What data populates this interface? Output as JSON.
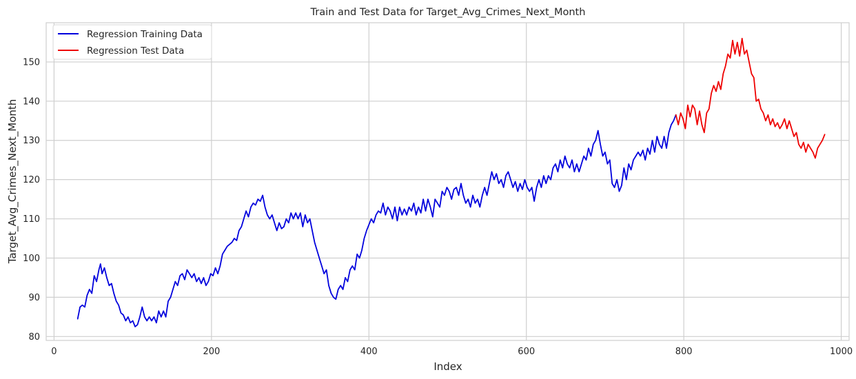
{
  "chart_data": {
    "type": "line",
    "title": "Train and Test Data for Target_Avg_Crimes_Next_Month",
    "xlabel": "Index",
    "ylabel": "Target_Avg_Crimes_Next_Month",
    "xlim": [
      -10,
      1010
    ],
    "ylim": [
      79,
      160
    ],
    "xticks": [
      0,
      200,
      400,
      600,
      800,
      1000
    ],
    "xtick_labels": [
      "0",
      "200",
      "400",
      "600",
      "800",
      "1000"
    ],
    "yticks": [
      80,
      90,
      100,
      110,
      120,
      130,
      140,
      150
    ],
    "ytick_labels": [
      "80",
      "90",
      "100",
      "110",
      "120",
      "130",
      "140",
      "150"
    ],
    "grid": true,
    "legend_position": "top-left",
    "series": [
      {
        "name": "Regression Training Data",
        "color": "#0000dd",
        "points": [
          [
            30,
            84.5
          ],
          [
            33,
            87.5
          ],
          [
            36,
            88
          ],
          [
            39,
            87.5
          ],
          [
            42,
            90.5
          ],
          [
            45,
            92
          ],
          [
            48,
            91
          ],
          [
            51,
            95.5
          ],
          [
            54,
            94
          ],
          [
            57,
            97
          ],
          [
            59,
            98.5
          ],
          [
            61,
            96
          ],
          [
            64,
            97.5
          ],
          [
            67,
            95
          ],
          [
            70,
            93
          ],
          [
            73,
            93.5
          ],
          [
            76,
            91
          ],
          [
            79,
            89
          ],
          [
            82,
            88
          ],
          [
            85,
            86
          ],
          [
            88,
            85.5
          ],
          [
            91,
            84
          ],
          [
            94,
            85
          ],
          [
            97,
            83.5
          ],
          [
            100,
            84
          ],
          [
            103,
            82.5
          ],
          [
            106,
            83
          ],
          [
            109,
            85
          ],
          [
            112,
            87.5
          ],
          [
            115,
            85
          ],
          [
            118,
            84
          ],
          [
            121,
            85
          ],
          [
            124,
            84
          ],
          [
            127,
            85
          ],
          [
            130,
            83.5
          ],
          [
            133,
            86.5
          ],
          [
            136,
            85
          ],
          [
            139,
            86.5
          ],
          [
            142,
            85
          ],
          [
            145,
            89
          ],
          [
            148,
            90
          ],
          [
            151,
            92
          ],
          [
            154,
            94
          ],
          [
            157,
            93
          ],
          [
            160,
            95.5
          ],
          [
            163,
            96
          ],
          [
            166,
            94.5
          ],
          [
            169,
            97
          ],
          [
            172,
            96
          ],
          [
            175,
            95
          ],
          [
            178,
            96
          ],
          [
            181,
            94
          ],
          [
            184,
            95
          ],
          [
            187,
            93.5
          ],
          [
            190,
            95
          ],
          [
            193,
            93
          ],
          [
            196,
            94
          ],
          [
            199,
            96
          ],
          [
            202,
            95.5
          ],
          [
            205,
            97.5
          ],
          [
            208,
            96
          ],
          [
            211,
            98
          ],
          [
            214,
            101
          ],
          [
            217,
            102
          ],
          [
            220,
            103
          ],
          [
            223,
            103.5
          ],
          [
            226,
            104
          ],
          [
            229,
            105
          ],
          [
            232,
            104.5
          ],
          [
            235,
            107
          ],
          [
            238,
            108
          ],
          [
            241,
            110
          ],
          [
            244,
            112
          ],
          [
            247,
            110.5
          ],
          [
            250,
            113
          ],
          [
            253,
            114
          ],
          [
            256,
            113.5
          ],
          [
            259,
            115
          ],
          [
            262,
            114.5
          ],
          [
            265,
            116
          ],
          [
            268,
            113
          ],
          [
            271,
            111
          ],
          [
            274,
            110
          ],
          [
            277,
            111
          ],
          [
            280,
            109
          ],
          [
            283,
            107
          ],
          [
            286,
            109
          ],
          [
            289,
            107.5
          ],
          [
            292,
            108
          ],
          [
            295,
            110
          ],
          [
            298,
            109
          ],
          [
            301,
            111.5
          ],
          [
            304,
            110
          ],
          [
            307,
            111.5
          ],
          [
            310,
            110
          ],
          [
            313,
            111.5
          ],
          [
            316,
            108
          ],
          [
            319,
            111
          ],
          [
            322,
            109
          ],
          [
            325,
            110
          ],
          [
            328,
            107
          ],
          [
            331,
            104
          ],
          [
            334,
            102
          ],
          [
            337,
            100
          ],
          [
            340,
            98
          ],
          [
            343,
            96
          ],
          [
            346,
            97
          ],
          [
            349,
            93
          ],
          [
            352,
            91
          ],
          [
            355,
            90
          ],
          [
            358,
            89.5
          ],
          [
            361,
            92
          ],
          [
            364,
            93
          ],
          [
            367,
            92
          ],
          [
            370,
            95
          ],
          [
            373,
            94
          ],
          [
            376,
            97
          ],
          [
            379,
            98
          ],
          [
            382,
            97
          ],
          [
            385,
            101
          ],
          [
            388,
            100
          ],
          [
            391,
            102
          ],
          [
            394,
            105
          ],
          [
            397,
            107
          ],
          [
            400,
            108.5
          ],
          [
            403,
            110
          ],
          [
            406,
            109
          ],
          [
            409,
            111
          ],
          [
            412,
            112
          ],
          [
            415,
            111.5
          ],
          [
            418,
            114
          ],
          [
            421,
            111
          ],
          [
            424,
            113
          ],
          [
            427,
            112
          ],
          [
            430,
            110
          ],
          [
            433,
            113
          ],
          [
            436,
            109.5
          ],
          [
            439,
            113
          ],
          [
            442,
            111
          ],
          [
            445,
            112.5
          ],
          [
            448,
            111
          ],
          [
            451,
            113
          ],
          [
            454,
            112
          ],
          [
            457,
            114
          ],
          [
            460,
            111
          ],
          [
            463,
            113
          ],
          [
            466,
            111.5
          ],
          [
            469,
            115
          ],
          [
            472,
            112
          ],
          [
            475,
            115
          ],
          [
            478,
            113
          ],
          [
            481,
            110.5
          ],
          [
            484,
            115
          ],
          [
            487,
            114
          ],
          [
            490,
            113
          ],
          [
            493,
            117
          ],
          [
            496,
            116
          ],
          [
            499,
            118
          ],
          [
            502,
            117
          ],
          [
            505,
            115
          ],
          [
            508,
            117.5
          ],
          [
            511,
            118
          ],
          [
            514,
            116
          ],
          [
            517,
            119
          ],
          [
            520,
            116
          ],
          [
            523,
            114
          ],
          [
            526,
            115
          ],
          [
            529,
            113
          ],
          [
            532,
            116
          ],
          [
            535,
            114
          ],
          [
            538,
            115
          ],
          [
            541,
            113
          ],
          [
            544,
            116
          ],
          [
            547,
            118
          ],
          [
            550,
            116
          ],
          [
            553,
            119
          ],
          [
            556,
            122
          ],
          [
            559,
            120
          ],
          [
            562,
            121.5
          ],
          [
            565,
            119
          ],
          [
            568,
            120
          ],
          [
            571,
            118
          ],
          [
            574,
            121
          ],
          [
            577,
            122
          ],
          [
            580,
            120
          ],
          [
            583,
            118
          ],
          [
            586,
            119.5
          ],
          [
            589,
            117
          ],
          [
            592,
            119
          ],
          [
            595,
            117.5
          ],
          [
            598,
            120
          ],
          [
            601,
            118
          ],
          [
            604,
            117
          ],
          [
            607,
            118
          ],
          [
            610,
            114.5
          ],
          [
            613,
            118
          ],
          [
            616,
            120
          ],
          [
            619,
            118
          ],
          [
            622,
            121
          ],
          [
            625,
            119
          ],
          [
            628,
            121
          ],
          [
            631,
            120
          ],
          [
            634,
            123
          ],
          [
            637,
            124
          ],
          [
            640,
            122
          ],
          [
            643,
            125
          ],
          [
            646,
            123
          ],
          [
            649,
            126
          ],
          [
            652,
            124
          ],
          [
            655,
            123
          ],
          [
            658,
            125
          ],
          [
            661,
            122
          ],
          [
            664,
            124
          ],
          [
            667,
            122
          ],
          [
            670,
            124
          ],
          [
            673,
            126
          ],
          [
            676,
            125
          ],
          [
            679,
            128
          ],
          [
            682,
            126
          ],
          [
            685,
            129
          ],
          [
            688,
            130
          ],
          [
            691,
            132.5
          ],
          [
            694,
            129
          ],
          [
            697,
            126
          ],
          [
            700,
            127
          ],
          [
            703,
            124
          ],
          [
            706,
            125
          ],
          [
            709,
            119
          ],
          [
            712,
            118
          ],
          [
            715,
            120
          ],
          [
            718,
            117
          ],
          [
            721,
            118.5
          ],
          [
            724,
            123
          ],
          [
            727,
            120
          ],
          [
            730,
            124
          ],
          [
            733,
            122.5
          ],
          [
            736,
            125
          ],
          [
            739,
            126
          ],
          [
            742,
            127
          ],
          [
            745,
            126
          ],
          [
            748,
            127.5
          ],
          [
            751,
            125
          ],
          [
            754,
            128
          ],
          [
            757,
            126.5
          ],
          [
            760,
            130
          ],
          [
            763,
            127
          ],
          [
            766,
            131
          ],
          [
            769,
            129
          ],
          [
            772,
            128
          ],
          [
            775,
            131
          ],
          [
            778,
            128
          ],
          [
            781,
            132
          ],
          [
            784,
            134
          ],
          [
            787,
            135
          ],
          [
            790,
            136.5
          ]
        ]
      },
      {
        "name": "Regression Test Data",
        "color": "#ee0000",
        "points": [
          [
            790,
            136.5
          ],
          [
            793,
            134
          ],
          [
            796,
            137
          ],
          [
            799,
            135.5
          ],
          [
            802,
            133
          ],
          [
            805,
            139
          ],
          [
            808,
            136
          ],
          [
            811,
            139
          ],
          [
            814,
            138
          ],
          [
            817,
            134
          ],
          [
            820,
            137.5
          ],
          [
            823,
            134
          ],
          [
            826,
            132
          ],
          [
            829,
            137
          ],
          [
            832,
            138
          ],
          [
            835,
            142
          ],
          [
            838,
            144
          ],
          [
            841,
            142.5
          ],
          [
            844,
            145
          ],
          [
            847,
            143
          ],
          [
            850,
            147
          ],
          [
            853,
            149
          ],
          [
            856,
            152
          ],
          [
            859,
            151
          ],
          [
            862,
            155.5
          ],
          [
            865,
            152
          ],
          [
            868,
            155
          ],
          [
            871,
            151.5
          ],
          [
            874,
            156
          ],
          [
            877,
            152
          ],
          [
            880,
            153
          ],
          [
            883,
            150
          ],
          [
            886,
            147
          ],
          [
            889,
            146
          ],
          [
            892,
            140
          ],
          [
            895,
            140.5
          ],
          [
            898,
            138
          ],
          [
            901,
            137
          ],
          [
            904,
            135
          ],
          [
            907,
            136.5
          ],
          [
            910,
            134
          ],
          [
            913,
            135.5
          ],
          [
            916,
            133.5
          ],
          [
            919,
            134.5
          ],
          [
            922,
            133
          ],
          [
            925,
            134
          ],
          [
            928,
            135.5
          ],
          [
            931,
            133
          ],
          [
            934,
            135
          ],
          [
            937,
            133
          ],
          [
            940,
            131
          ],
          [
            943,
            132
          ],
          [
            946,
            129
          ],
          [
            949,
            128
          ],
          [
            952,
            129.5
          ],
          [
            955,
            127
          ],
          [
            958,
            129
          ],
          [
            961,
            128
          ],
          [
            964,
            127
          ],
          [
            967,
            125.5
          ],
          [
            970,
            128
          ],
          [
            973,
            129
          ],
          [
            976,
            130
          ],
          [
            979,
            131.5
          ]
        ]
      }
    ]
  }
}
